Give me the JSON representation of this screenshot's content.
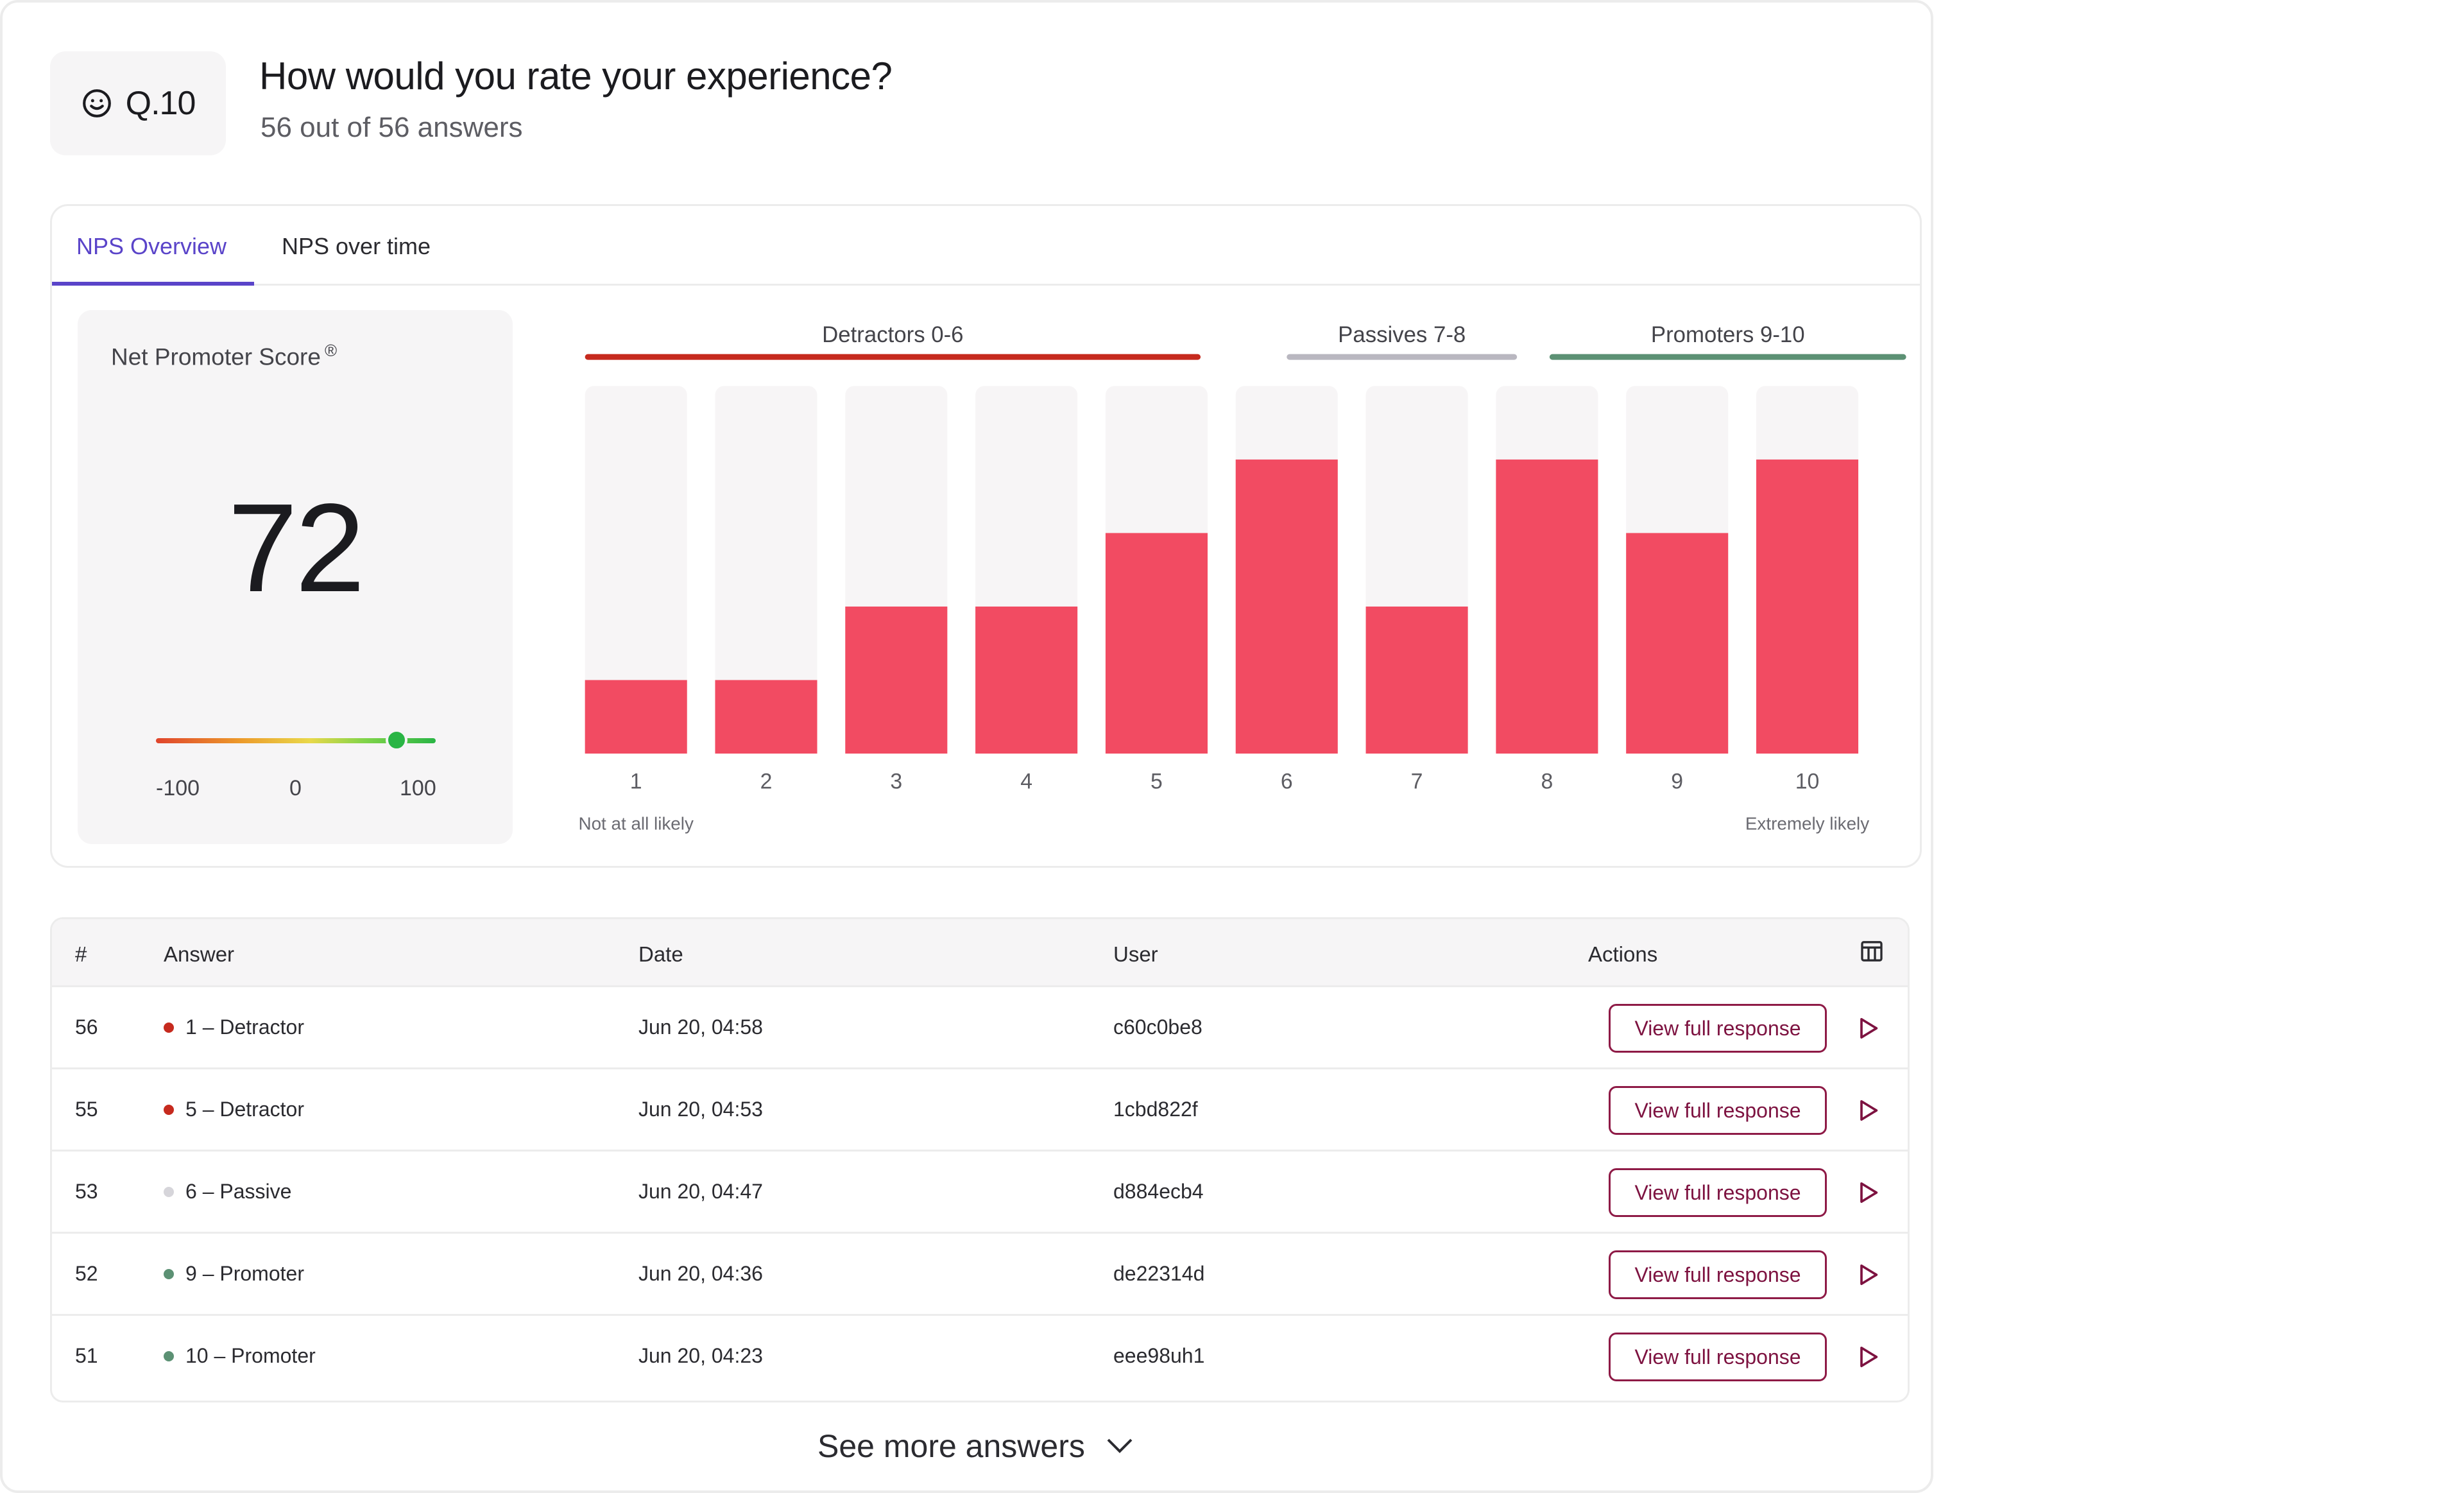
{
  "question": {
    "number": "Q.10",
    "icon": "smiley-icon",
    "title": "How would you rate your experience?",
    "subtitle": "56 out of 56 answers"
  },
  "tabs": [
    {
      "label": "NPS Overview",
      "active": true
    },
    {
      "label": "NPS over time",
      "active": false
    }
  ],
  "nps": {
    "label": "Net Promoter Score",
    "registered_mark": "®",
    "value": "72",
    "score_numeric": 72,
    "gauge_min": "-100",
    "gauge_mid": "0",
    "gauge_max": "100"
  },
  "colors": {
    "accent": "#5a44c9",
    "bar": "#f24b62",
    "bar_track": "#f7f5f6",
    "detractors": "#c62a1e",
    "passives": "#b9b7c0",
    "promoters": "#5c9174",
    "button_border": "#8e1a46"
  },
  "chart_data": {
    "type": "bar",
    "categories": [
      "1",
      "2",
      "3",
      "4",
      "5",
      "6",
      "7",
      "8",
      "9",
      "10"
    ],
    "values": [
      1,
      1,
      2,
      2,
      3,
      4,
      2,
      4,
      3,
      4
    ],
    "ylim": [
      0,
      5
    ],
    "groups": [
      {
        "label": "Detractors  0-6",
        "from": 1,
        "to": 5,
        "color": "#c62a1e"
      },
      {
        "label": "Passives  7-8",
        "from": 6,
        "to": 7,
        "color": "#b9b7c0"
      },
      {
        "label": "Promoters  9-10",
        "from": 8,
        "to": 10,
        "color": "#5c9174"
      }
    ],
    "x_start_label": "Not at all likely",
    "x_end_label": "Extremely likely"
  },
  "table": {
    "headers": {
      "num": "#",
      "answer": "Answer",
      "date": "Date",
      "user": "User",
      "actions": "Actions"
    },
    "columns_icon": "table-columns-icon",
    "button_label": "View full response",
    "rows": [
      {
        "num": "56",
        "answer": "1 – Detractor",
        "type": "detractor",
        "date": "Jun 20, 04:58",
        "user": "c60c0be8"
      },
      {
        "num": "55",
        "answer": "5 – Detractor",
        "type": "detractor",
        "date": "Jun 20, 04:53",
        "user": "1cbd822f"
      },
      {
        "num": "53",
        "answer": "6 – Passive",
        "type": "passive",
        "date": "Jun 20, 04:47",
        "user": "d884ecb4"
      },
      {
        "num": "52",
        "answer": "9 – Promoter",
        "type": "promoter",
        "date": "Jun 20, 04:36",
        "user": "de22314d"
      },
      {
        "num": "51",
        "answer": "10 – Promoter",
        "type": "promoter",
        "date": "Jun 20, 04:23",
        "user": "eee98uh1"
      }
    ]
  },
  "see_more": "See more answers"
}
